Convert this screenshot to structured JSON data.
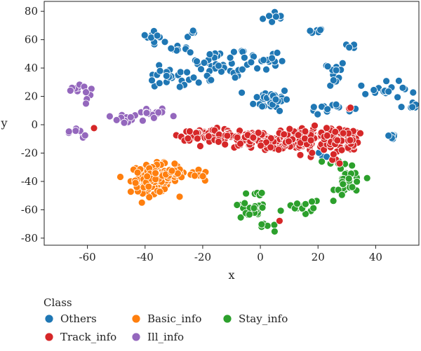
{
  "chart_data": {
    "type": "scatter",
    "title": "",
    "xlabel": "x",
    "ylabel": "y",
    "xlim": [
      -75,
      55
    ],
    "ylim": [
      -85,
      87
    ],
    "xticks": [
      -60,
      -40,
      -20,
      0,
      20,
      40
    ],
    "yticks": [
      -80,
      -60,
      -40,
      -20,
      0,
      20,
      40,
      60,
      80
    ],
    "grid": false,
    "legend": {
      "title": "Class",
      "position": "bottom-left-outside"
    },
    "series": [
      {
        "name": "Others",
        "color": "#1f77b4",
        "clusters": [
          {
            "cx": 6,
            "cy": 76,
            "sx": 2.5,
            "sy": 2.5,
            "n": 10
          },
          {
            "cx": 18,
            "cy": 66,
            "sx": 2.5,
            "sy": 1,
            "n": 7
          },
          {
            "cx": -36,
            "cy": 62,
            "sx": 2.5,
            "sy": 2,
            "n": 10
          },
          {
            "cx": -24,
            "cy": 64,
            "sx": 1,
            "sy": 1.5,
            "n": 4
          },
          {
            "cx": -27,
            "cy": 54,
            "sx": 2,
            "sy": 2,
            "n": 7
          },
          {
            "cx": 31,
            "cy": 55,
            "sx": 1,
            "sy": 1,
            "n": 4
          },
          {
            "cx": -14,
            "cy": 46,
            "sx": 5,
            "sy": 4,
            "n": 18
          },
          {
            "cx": -32,
            "cy": 32,
            "sx": 5,
            "sy": 4,
            "n": 22
          },
          {
            "cx": -15,
            "cy": 36,
            "sx": 6,
            "sy": 4,
            "n": 20
          },
          {
            "cx": 0,
            "cy": 46,
            "sx": 4,
            "sy": 5,
            "n": 22
          },
          {
            "cx": 24,
            "cy": 36,
            "sx": 3,
            "sy": 5,
            "n": 16
          },
          {
            "cx": 4,
            "cy": 18,
            "sx": 3,
            "sy": 4,
            "n": 40
          },
          {
            "cx": 24,
            "cy": 12,
            "sx": 4,
            "sy": 2,
            "n": 14
          },
          {
            "cx": 44,
            "cy": 24,
            "sx": 5,
            "sy": 3,
            "n": 18
          },
          {
            "cx": 53,
            "cy": 14,
            "sx": 2,
            "sy": 2,
            "n": 12
          },
          {
            "cx": 46,
            "cy": -10,
            "sx": 2,
            "sy": 3,
            "n": 6
          },
          {
            "cx": 22,
            "cy": -20,
            "sx": 2,
            "sy": 3,
            "n": 4
          }
        ]
      },
      {
        "name": "Basic_info",
        "color": "#ff7f0e",
        "clusters": [
          {
            "cx": -37,
            "cy": -38,
            "sx": 4,
            "sy": 5,
            "n": 120
          },
          {
            "cx": -28,
            "cy": -34,
            "sx": 4,
            "sy": 2,
            "n": 24
          },
          {
            "cx": -21,
            "cy": -36,
            "sx": 2,
            "sy": 2,
            "n": 6
          }
        ]
      },
      {
        "name": "Stay_info",
        "color": "#2ca02c",
        "clusters": [
          {
            "cx": -4,
            "cy": -61,
            "sx": 3,
            "sy": 3,
            "n": 22
          },
          {
            "cx": -2,
            "cy": -49,
            "sx": 2,
            "sy": 2,
            "n": 6
          },
          {
            "cx": 2,
            "cy": -73,
            "sx": 2,
            "sy": 1.5,
            "n": 6
          },
          {
            "cx": 15,
            "cy": -58,
            "sx": 3,
            "sy": 3,
            "n": 14
          },
          {
            "cx": 31,
            "cy": -41,
            "sx": 2.5,
            "sy": 5,
            "n": 30
          },
          {
            "cx": 27,
            "cy": -28,
            "sx": 2,
            "sy": 2,
            "n": 6
          }
        ]
      },
      {
        "name": "Track_info",
        "color": "#d62728",
        "clusters": [
          {
            "cx": -18,
            "cy": -7,
            "sx": 5,
            "sy": 2,
            "n": 60
          },
          {
            "cx": -2,
            "cy": -11,
            "sx": 6,
            "sy": 3,
            "n": 110
          },
          {
            "cx": 15,
            "cy": -10,
            "sx": 6,
            "sy": 4,
            "n": 130
          },
          {
            "cx": 28,
            "cy": -10,
            "sx": 3,
            "sy": 4,
            "n": 70
          },
          {
            "cx": 24,
            "cy": -24,
            "sx": 3,
            "sy": 3,
            "n": 8
          },
          {
            "cx": 31,
            "cy": 12,
            "sx": 1,
            "sy": 1,
            "n": 2
          },
          {
            "cx": -58,
            "cy": -2,
            "sx": 0.5,
            "sy": 0.5,
            "n": 1
          },
          {
            "cx": 7,
            "cy": -68,
            "sx": 0.5,
            "sy": 0.5,
            "n": 1
          }
        ]
      },
      {
        "name": "Ill_info",
        "color": "#9467bd",
        "clusters": [
          {
            "cx": -64,
            "cy": 24,
            "sx": 1.5,
            "sy": 2,
            "n": 6
          },
          {
            "cx": -60,
            "cy": 22,
            "sx": 1,
            "sy": 5,
            "n": 6
          },
          {
            "cx": -62,
            "cy": -6,
            "sx": 2,
            "sy": 2,
            "n": 8
          },
          {
            "cx": -67,
            "cy": -5,
            "sx": 0.5,
            "sy": 0.5,
            "n": 1
          },
          {
            "cx": -46,
            "cy": 3,
            "sx": 3,
            "sy": 2,
            "n": 14
          },
          {
            "cx": -37,
            "cy": 8,
            "sx": 3,
            "sy": 2,
            "n": 14
          }
        ]
      }
    ]
  }
}
